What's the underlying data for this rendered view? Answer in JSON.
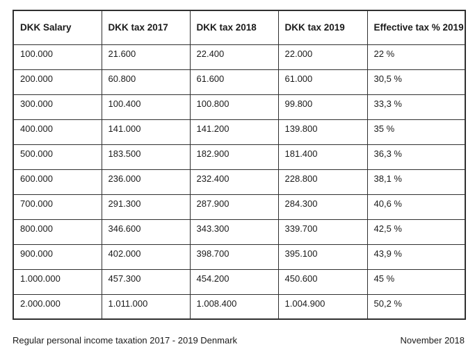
{
  "table": {
    "headers": [
      "DKK Salary",
      "DKK tax 2017",
      "DKK tax 2018",
      "DKK tax 2019",
      "Effective tax % 2019"
    ],
    "rows": [
      [
        "100.000",
        "21.600",
        "22.400",
        "22.000",
        "22 %"
      ],
      [
        "200.000",
        "60.800",
        "61.600",
        "61.000",
        "30,5 %"
      ],
      [
        "300.000",
        "100.400",
        "100.800",
        "99.800",
        "33,3 %"
      ],
      [
        "400.000",
        "141.000",
        "141.200",
        "139.800",
        "35 %"
      ],
      [
        "500.000",
        "183.500",
        "182.900",
        "181.400",
        "36,3 %"
      ],
      [
        "600.000",
        "236.000",
        "232.400",
        "228.800",
        "38,1 %"
      ],
      [
        "700.000",
        "291.300",
        "287.900",
        "284.300",
        "40,6 %"
      ],
      [
        "800.000",
        "346.600",
        "343.300",
        "339.700",
        "42,5 %"
      ],
      [
        "900.000",
        "402.000",
        "398.700",
        "395.100",
        "43,9 %"
      ],
      [
        "1.000.000",
        "457.300",
        "454.200",
        "450.600",
        "45 %"
      ],
      [
        "2.000.000",
        "1.011.000",
        "1.008.400",
        "1.004.900",
        "50,2 %"
      ]
    ]
  },
  "footer": {
    "caption": "Regular personal income taxation 2017 - 2019 Denmark",
    "date": "November 2018"
  },
  "colors": {
    "border": "#2f2f2f",
    "text": "#1a1a1a",
    "background": "#ffffff"
  },
  "chart_data": {
    "type": "table",
    "title": "Regular personal income taxation 2017 - 2019 Denmark",
    "columns": [
      "DKK Salary",
      "DKK tax 2017",
      "DKK tax 2018",
      "DKK tax 2019",
      "Effective tax % 2019"
    ],
    "rows": [
      [
        "100.000",
        "21.600",
        "22.400",
        "22.000",
        "22 %"
      ],
      [
        "200.000",
        "60.800",
        "61.600",
        "61.000",
        "30,5 %"
      ],
      [
        "300.000",
        "100.400",
        "100.800",
        "99.800",
        "33,3 %"
      ],
      [
        "400.000",
        "141.000",
        "141.200",
        "139.800",
        "35 %"
      ],
      [
        "500.000",
        "183.500",
        "182.900",
        "181.400",
        "36,3 %"
      ],
      [
        "600.000",
        "236.000",
        "232.400",
        "228.800",
        "38,1 %"
      ],
      [
        "700.000",
        "291.300",
        "287.900",
        "284.300",
        "40,6 %"
      ],
      [
        "800.000",
        "346.600",
        "343.300",
        "339.700",
        "42,5 %"
      ],
      [
        "900.000",
        "402.000",
        "398.700",
        "395.100",
        "43,9 %"
      ],
      [
        "1.000.000",
        "457.300",
        "454.200",
        "450.600",
        "45 %"
      ],
      [
        "2.000.000",
        "1.011.000",
        "1.008.400",
        "1.004.900",
        "50,2 %"
      ]
    ]
  }
}
